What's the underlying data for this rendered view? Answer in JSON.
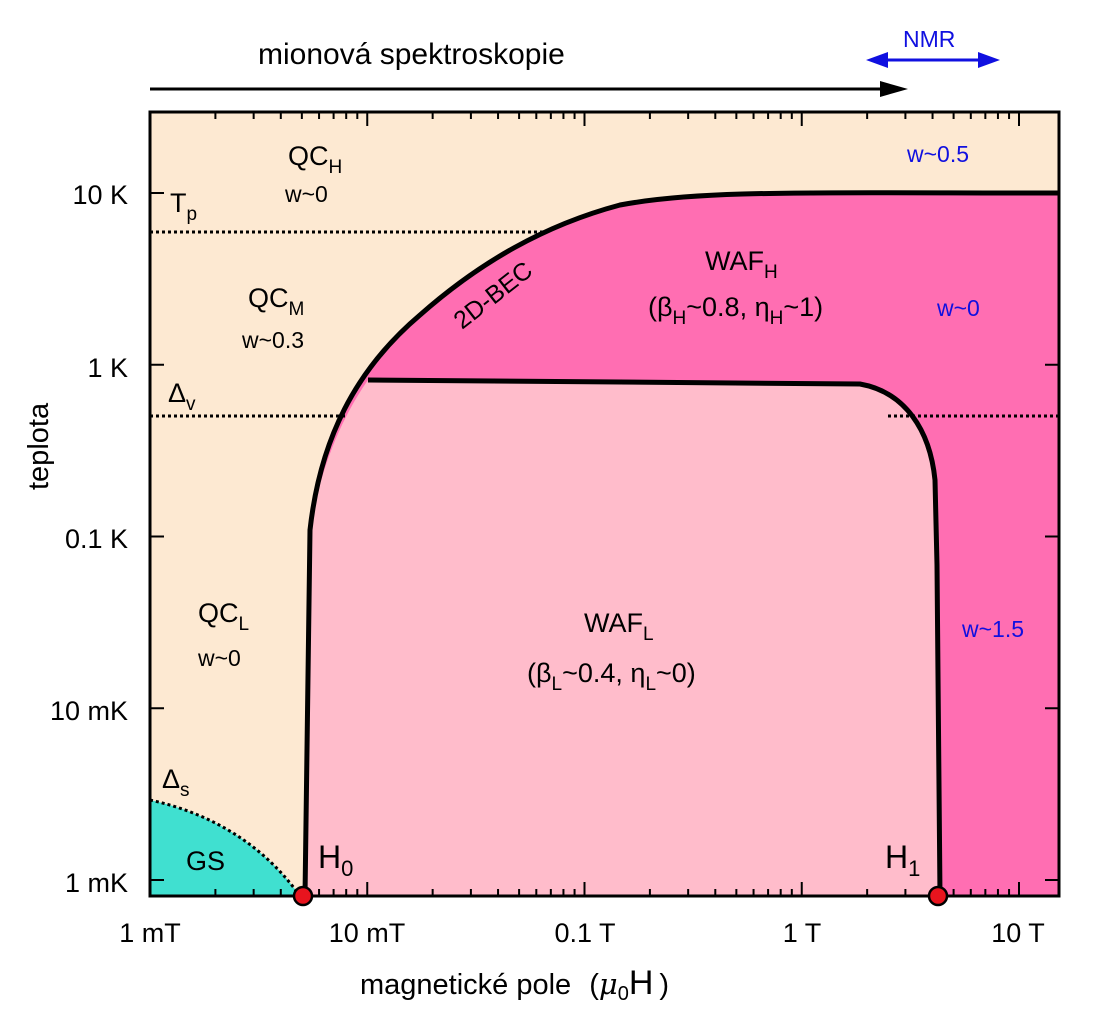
{
  "top": {
    "muon_label": "mionová spektroskopie",
    "nmr_label": "NMR"
  },
  "axes": {
    "xlabel_prefix": "magnetické pole",
    "xlabel_mu": "μ",
    "xlabel_sub": "0",
    "xlabel_H": "H",
    "ylabel": "teplota",
    "x_ticks": [
      "1 mT",
      "10 mT",
      "0.1 T",
      "1 T",
      "10 T"
    ],
    "y_ticks": [
      "10 K",
      "1 K",
      "0.1 K",
      "10 mK",
      "1 mK"
    ]
  },
  "lines": {
    "tp": "T",
    "tp_sub": "p",
    "dv": "Δ",
    "dv_sub": "v",
    "ds": "Δ",
    "ds_sub": "s",
    "bec": "2D-BEC"
  },
  "regions": {
    "qch": "QC",
    "qch_sub": "H",
    "qch_w": "w~0",
    "qcm": "QC",
    "qcm_sub": "M",
    "qcm_w": "w~0.3",
    "qcl": "QC",
    "qcl_sub": "L",
    "qcl_w": "w~0",
    "gs": "GS",
    "wafh": "WAF",
    "wafh_sub": "H",
    "wafh_p1": "(β",
    "wafh_p2": "H",
    "wafh_p3": "~0.8, η",
    "wafh_p4": "H",
    "wafh_p5": "~1)",
    "wafl": "WAF",
    "wafl_sub": "L",
    "wafl_p1": "(β",
    "wafl_p2": "L",
    "wafl_p3": "~0.4, η",
    "wafl_p4": "L",
    "wafl_p5": "~0)",
    "w_top": "w~0.5",
    "w_mid": "w~0",
    "w_bot": "w~1.5"
  },
  "points": {
    "h0": "H",
    "h0_sub": "0",
    "h1": "H",
    "h1_sub": "1"
  },
  "colors": {
    "background": "#fde9d2",
    "waf_h": "#ff6eb2",
    "waf_l": "#ffbccb",
    "gs": "#40e0d0",
    "nmr": "#1010e0",
    "point": "#e8141e"
  }
}
